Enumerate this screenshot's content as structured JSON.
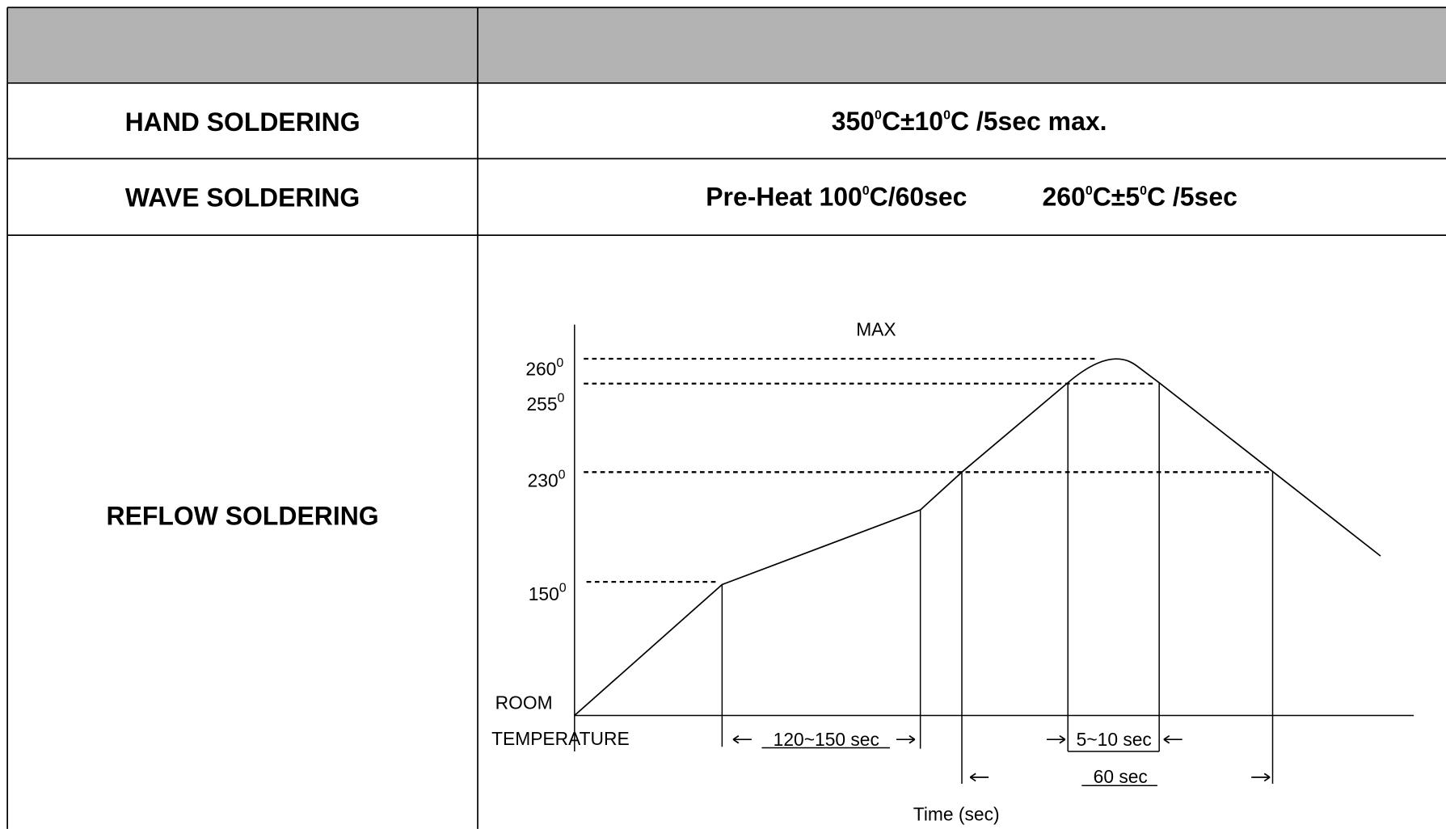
{
  "table": {
    "rows": [
      {
        "label": "HAND SOLDERING",
        "parts": [
          {
            "text": "350"
          },
          {
            "text": "0",
            "sup": true
          },
          {
            "text": "C±10"
          },
          {
            "text": "0",
            "sup": true
          },
          {
            "text": "C /5sec max."
          }
        ]
      },
      {
        "label": "WAVE SOLDERING",
        "parts": [
          {
            "text": "Pre-Heat 100"
          },
          {
            "text": "0",
            "sup": true
          },
          {
            "text": "C/60sec"
          }
        ],
        "parts2": [
          {
            "text": "260"
          },
          {
            "text": "0",
            "sup": true
          },
          {
            "text": "C±5"
          },
          {
            "text": "0",
            "sup": true
          },
          {
            "text": "C /5sec"
          }
        ]
      },
      {
        "label": "REFLOW SOLDERING"
      }
    ]
  },
  "diagram": {
    "max_label": "MAX",
    "temps": [
      {
        "text": "260",
        "sup": "0"
      },
      {
        "text": "255",
        "sup": "0"
      },
      {
        "text": "230",
        "sup": "0"
      },
      {
        "text": "150",
        "sup": "0"
      }
    ],
    "room": "ROOM",
    "temperature": "TEMPERATURE",
    "preheat_time": "120~150 sec",
    "peak_time": "5~10 sec",
    "above_time": "60 sec",
    "x_label": "Time (sec)"
  }
}
